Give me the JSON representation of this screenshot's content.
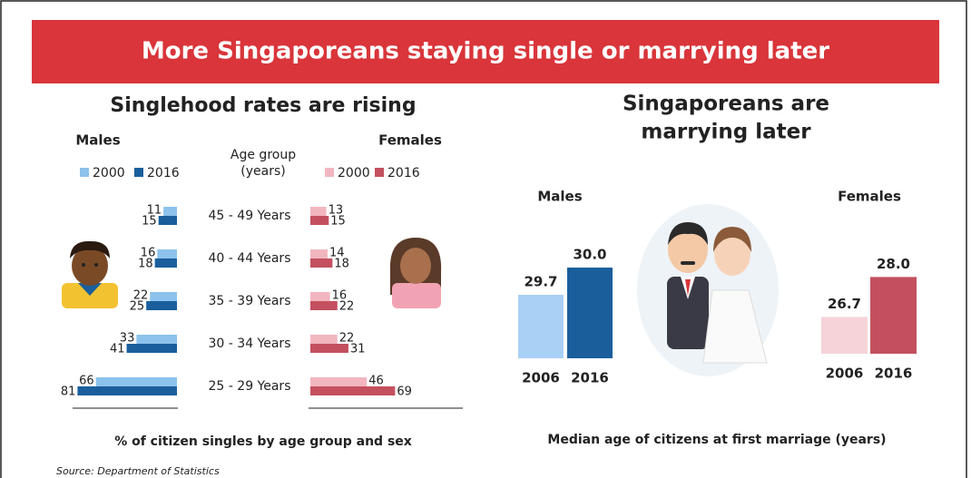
{
  "title": "More Singaporeans staying single or marrying later",
  "source": "Source: Department of Statistics",
  "right_panel": {
    "title_lines": [
      "Singaporeans are",
      "marrying later"
    ],
    "caption": "Median age of citizens at first marriage (years)"
  },
  "chart_data": [
    {
      "type": "butterfly",
      "title": "Singlehood rates are rising",
      "left_label": "Males",
      "right_label": "Females",
      "center_header": [
        "Age group",
        "(years)"
      ],
      "categories": [
        "45 - 49 Years",
        "40 - 44 Years",
        "35 - 39 Years",
        "30 - 34 Years",
        "25 - 29 Years"
      ],
      "xlim": [
        0,
        85
      ],
      "series": [
        {
          "name": "2000",
          "side": "left",
          "color": "#8cc2ec",
          "values": [
            11,
            16,
            22,
            33,
            66
          ]
        },
        {
          "name": "2016",
          "side": "left",
          "color": "#1a5f9c",
          "values": [
            15,
            18,
            25,
            41,
            81
          ]
        },
        {
          "name": "2000",
          "side": "right",
          "color": "#f2b6c0",
          "values": [
            13,
            14,
            16,
            22,
            46
          ]
        },
        {
          "name": "2016",
          "side": "right",
          "color": "#c4505f",
          "values": [
            15,
            18,
            22,
            31,
            69
          ]
        }
      ],
      "caption": "% of citizen singles by age group and sex"
    },
    {
      "type": "bar",
      "title": "Males",
      "categories": [
        "2006",
        "2016"
      ],
      "values": [
        29.7,
        30
      ],
      "value_labels": [
        "29.7",
        "30.0"
      ],
      "colors": [
        "#a9d0f5",
        "#1a5f9c"
      ],
      "ylim": [
        29,
        30.05
      ]
    },
    {
      "type": "bar",
      "title": "Females",
      "categories": [
        "2006",
        "2016"
      ],
      "values": [
        26.7,
        28
      ],
      "value_labels": [
        "26.7",
        "28.0"
      ],
      "colors": [
        "#f6d3d9",
        "#c4505f"
      ],
      "ylim": [
        25.5,
        28.1
      ]
    }
  ]
}
